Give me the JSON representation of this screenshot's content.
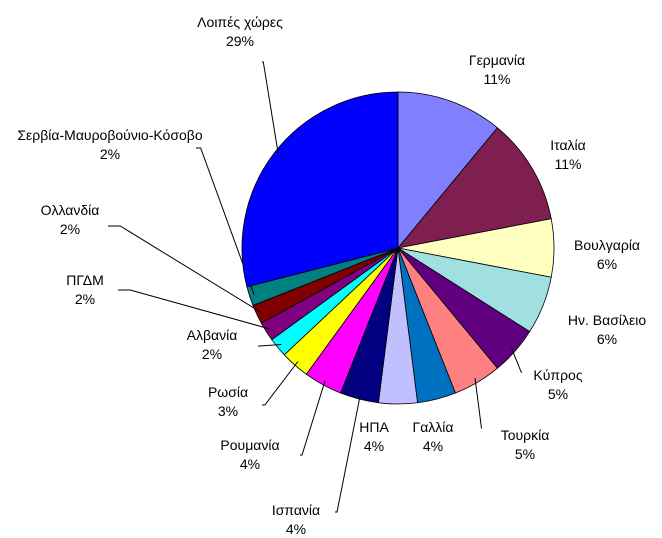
{
  "chart_data": {
    "type": "pie",
    "categories": [
      "Γερμανία",
      "Ιταλία",
      "Βουλγαρία",
      "Ην. Βασίλειο",
      "Κύπρος",
      "Τουρκία",
      "Γαλλία",
      "ΗΠΑ",
      "Ισπανία",
      "Ρουμανία",
      "Ρωσία",
      "Αλβανία",
      "ΠΓΔΜ",
      "Ολλανδία",
      "Σερβία-Μαυροβούνιο-Κόσοβο",
      "Λοιπές χώρες"
    ],
    "values": [
      11,
      11,
      6,
      6,
      5,
      5,
      4,
      4,
      4,
      4,
      3,
      2,
      2,
      2,
      2,
      29
    ],
    "value_labels": [
      "11%",
      "11%",
      "6%",
      "6%",
      "5%",
      "5%",
      "4%",
      "4%",
      "4%",
      "4%",
      "3%",
      "2%",
      "2%",
      "2%",
      "2%",
      "29%"
    ],
    "colors": [
      "#8080ff",
      "#7f1f4f",
      "#ffffc0",
      "#a0e0e0",
      "#600080",
      "#ff8080",
      "#0070c0",
      "#c0c0ff",
      "#000080",
      "#ff00ff",
      "#ffff00",
      "#00ffff",
      "#800080",
      "#800000",
      "#008080",
      "#0000ff"
    ]
  }
}
